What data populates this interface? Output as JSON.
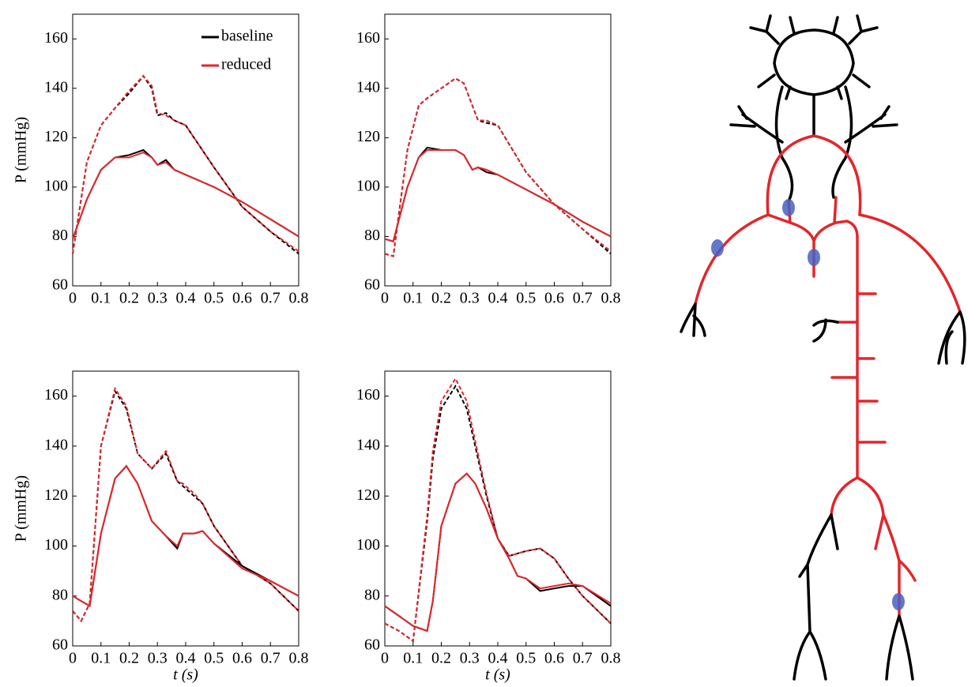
{
  "chart_data": [
    {
      "type": "line",
      "ylabel": "P (mmHg)",
      "xlim": [
        0,
        0.8
      ],
      "ylim": [
        60,
        170
      ],
      "xticks": [
        0,
        0.1,
        0.2,
        0.3,
        0.4,
        0.5,
        0.6,
        0.7,
        0.8
      ],
      "yticks": [
        60,
        80,
        100,
        120,
        140,
        160
      ],
      "legend": [
        {
          "name": "baseline",
          "color": "#000000"
        },
        {
          "name": "reduced",
          "color": "#e3262b"
        }
      ],
      "x": [
        0,
        0.05,
        0.1,
        0.15,
        0.2,
        0.25,
        0.28,
        0.3,
        0.33,
        0.36,
        0.4,
        0.5,
        0.6,
        0.7,
        0.8
      ],
      "series": [
        {
          "color": "#000000",
          "dash": true,
          "values": [
            73,
            110,
            125,
            132,
            138,
            145,
            140,
            129,
            130,
            127,
            125,
            108,
            92,
            82,
            73
          ]
        },
        {
          "color": "#e3262b",
          "dash": true,
          "values": [
            73,
            110,
            125,
            132,
            139,
            145,
            141,
            130,
            129,
            127,
            125,
            108,
            92,
            82,
            74
          ]
        },
        {
          "color": "#000000",
          "dash": false,
          "values": [
            79,
            95,
            107,
            112,
            113,
            115,
            112,
            109,
            111,
            107,
            105,
            100,
            94,
            87,
            80
          ]
        },
        {
          "color": "#e3262b",
          "dash": false,
          "values": [
            79,
            95,
            107,
            112,
            112,
            114,
            112,
            109,
            110,
            107,
            105,
            100,
            94,
            87,
            80
          ]
        }
      ]
    },
    {
      "type": "line",
      "xlim": [
        0,
        0.8
      ],
      "ylim": [
        60,
        170
      ],
      "xticks": [
        0,
        0.1,
        0.2,
        0.3,
        0.4,
        0.5,
        0.6,
        0.7,
        0.8
      ],
      "yticks": [
        60,
        80,
        100,
        120,
        140,
        160
      ],
      "x": [
        0,
        0.03,
        0.08,
        0.12,
        0.15,
        0.2,
        0.25,
        0.28,
        0.31,
        0.33,
        0.36,
        0.4,
        0.5,
        0.6,
        0.7,
        0.8
      ],
      "series": [
        {
          "color": "#000000",
          "dash": true,
          "values": [
            73,
            72,
            115,
            133,
            136,
            140,
            144,
            142,
            133,
            127,
            126,
            125,
            106,
            93,
            83,
            73
          ]
        },
        {
          "color": "#e3262b",
          "dash": true,
          "values": [
            73,
            72,
            115,
            133,
            136,
            140,
            144,
            142,
            133,
            127,
            127,
            125,
            106,
            93,
            83,
            74
          ]
        },
        {
          "color": "#000000",
          "dash": false,
          "values": [
            79,
            78,
            100,
            112,
            116,
            115,
            115,
            113,
            107,
            108,
            106,
            105,
            99,
            93,
            86,
            80
          ]
        },
        {
          "color": "#e3262b",
          "dash": false,
          "values": [
            79,
            78,
            100,
            112,
            115,
            115,
            115,
            113,
            107,
            108,
            107,
            105,
            99,
            93,
            86,
            80
          ]
        }
      ]
    },
    {
      "type": "line",
      "ylabel": "P (mmHg)",
      "xlabel": "t (s)",
      "xlim": [
        0,
        0.8
      ],
      "ylim": [
        60,
        170
      ],
      "xticks": [
        0,
        0.1,
        0.2,
        0.3,
        0.4,
        0.5,
        0.6,
        0.7,
        0.8
      ],
      "yticks": [
        60,
        80,
        100,
        120,
        140,
        160
      ],
      "x": [
        0,
        0.03,
        0.06,
        0.1,
        0.15,
        0.19,
        0.23,
        0.28,
        0.33,
        0.37,
        0.39,
        0.43,
        0.46,
        0.5,
        0.6,
        0.7,
        0.8
      ],
      "series": [
        {
          "color": "#000000",
          "dash": true,
          "values": [
            74,
            70,
            77,
            140,
            162,
            155,
            137,
            131,
            137,
            126,
            124,
            120,
            117,
            108,
            92,
            85,
            74
          ]
        },
        {
          "color": "#e3262b",
          "dash": true,
          "values": [
            74,
            70,
            77,
            140,
            163,
            156,
            137,
            131,
            138,
            126,
            125,
            121,
            117,
            108,
            92,
            85,
            74
          ]
        },
        {
          "color": "#000000",
          "dash": false,
          "values": [
            80,
            78,
            76,
            105,
            127,
            132,
            125,
            110,
            104,
            99,
            105,
            105,
            106,
            101,
            92,
            86,
            80
          ]
        },
        {
          "color": "#e3262b",
          "dash": false,
          "values": [
            80,
            78,
            76,
            105,
            127,
            132,
            125,
            110,
            104,
            100,
            105,
            105,
            106,
            101,
            91,
            86,
            80
          ]
        }
      ]
    },
    {
      "type": "line",
      "xlabel": "t (s)",
      "xlim": [
        0,
        0.8
      ],
      "ylim": [
        60,
        170
      ],
      "xticks": [
        0,
        0.1,
        0.2,
        0.3,
        0.4,
        0.5,
        0.6,
        0.7,
        0.8
      ],
      "yticks": [
        60,
        80,
        100,
        120,
        140,
        160
      ],
      "x": [
        0,
        0.05,
        0.1,
        0.15,
        0.17,
        0.2,
        0.25,
        0.29,
        0.32,
        0.36,
        0.4,
        0.44,
        0.47,
        0.5,
        0.55,
        0.6,
        0.65,
        0.7,
        0.8
      ],
      "series": [
        {
          "color": "#000000",
          "dash": true,
          "values": [
            69,
            66,
            62,
            110,
            135,
            155,
            164,
            155,
            140,
            120,
            103,
            96,
            97,
            98,
            99,
            95,
            87,
            80,
            69
          ]
        },
        {
          "color": "#e3262b",
          "dash": true,
          "values": [
            69,
            66,
            62,
            112,
            138,
            158,
            167,
            158,
            142,
            121,
            103,
            96,
            97,
            98,
            99,
            95,
            87,
            80,
            69
          ]
        },
        {
          "color": "#000000",
          "dash": false,
          "values": [
            76,
            72,
            68,
            66,
            78,
            108,
            125,
            129,
            125,
            115,
            103,
            95,
            88,
            87,
            82,
            83,
            84,
            84,
            76
          ]
        },
        {
          "color": "#e3262b",
          "dash": false,
          "values": [
            76,
            72,
            68,
            66,
            78,
            108,
            125,
            129,
            125,
            115,
            103,
            95,
            88,
            87,
            83,
            84,
            85,
            84,
            77
          ]
        }
      ]
    }
  ]
}
